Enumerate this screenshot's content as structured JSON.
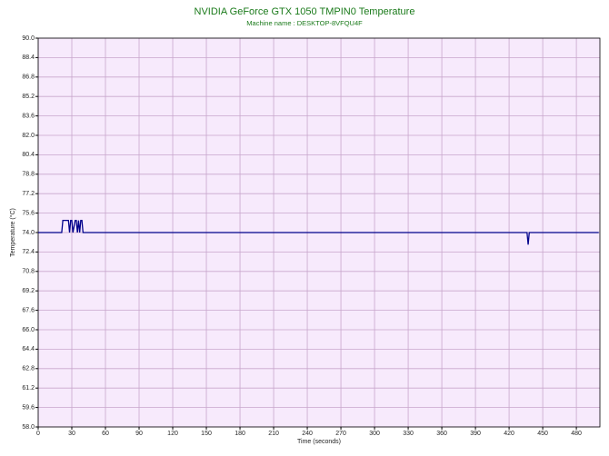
{
  "chart_data": {
    "type": "line",
    "title": "NVIDIA GeForce GTX 1050 TMPIN0 Temperature",
    "subtitle": "Machine name : DESKTOP-8VFQU4F",
    "x_label": "Time (seconds)",
    "y_label": "Temperature (°C)",
    "x": [
      0,
      21,
      22,
      27,
      28,
      29,
      30,
      31,
      33,
      34,
      35,
      36,
      37,
      38,
      39,
      40,
      41,
      436,
      437,
      438,
      500
    ],
    "series": [
      {
        "color": "#00008b",
        "values": [
          74,
          74,
          75,
          75,
          74,
          75,
          75,
          74,
          75,
          75,
          74,
          75,
          74,
          75,
          75,
          74,
          74,
          74,
          73,
          74,
          74
        ]
      }
    ],
    "xlim": [
      0,
      501
    ],
    "xticks": [
      0,
      30,
      60,
      90,
      120,
      150,
      180,
      210,
      240,
      270,
      300,
      330,
      360,
      390,
      420,
      450,
      480
    ],
    "ylim": [
      58,
      90
    ],
    "yticks": [
      {
        "value": 58,
        "label": "58.0"
      },
      59.6,
      61.2,
      62.8,
      64.4,
      {
        "value": 66,
        "label": "66.0"
      },
      67.6,
      69.2,
      70.8,
      72.4,
      {
        "value": 74,
        "label": "74.0"
      },
      75.6,
      77.2,
      78.8,
      80.4,
      {
        "value": 82,
        "label": "82.0"
      },
      83.6,
      85.2,
      86.8,
      88.4,
      {
        "value": 90,
        "label": "90.0"
      }
    ],
    "grid": true,
    "plot_background": "#f7eafc",
    "grid_color": "#c8a6cc",
    "title_color": "#1a7a1a"
  }
}
